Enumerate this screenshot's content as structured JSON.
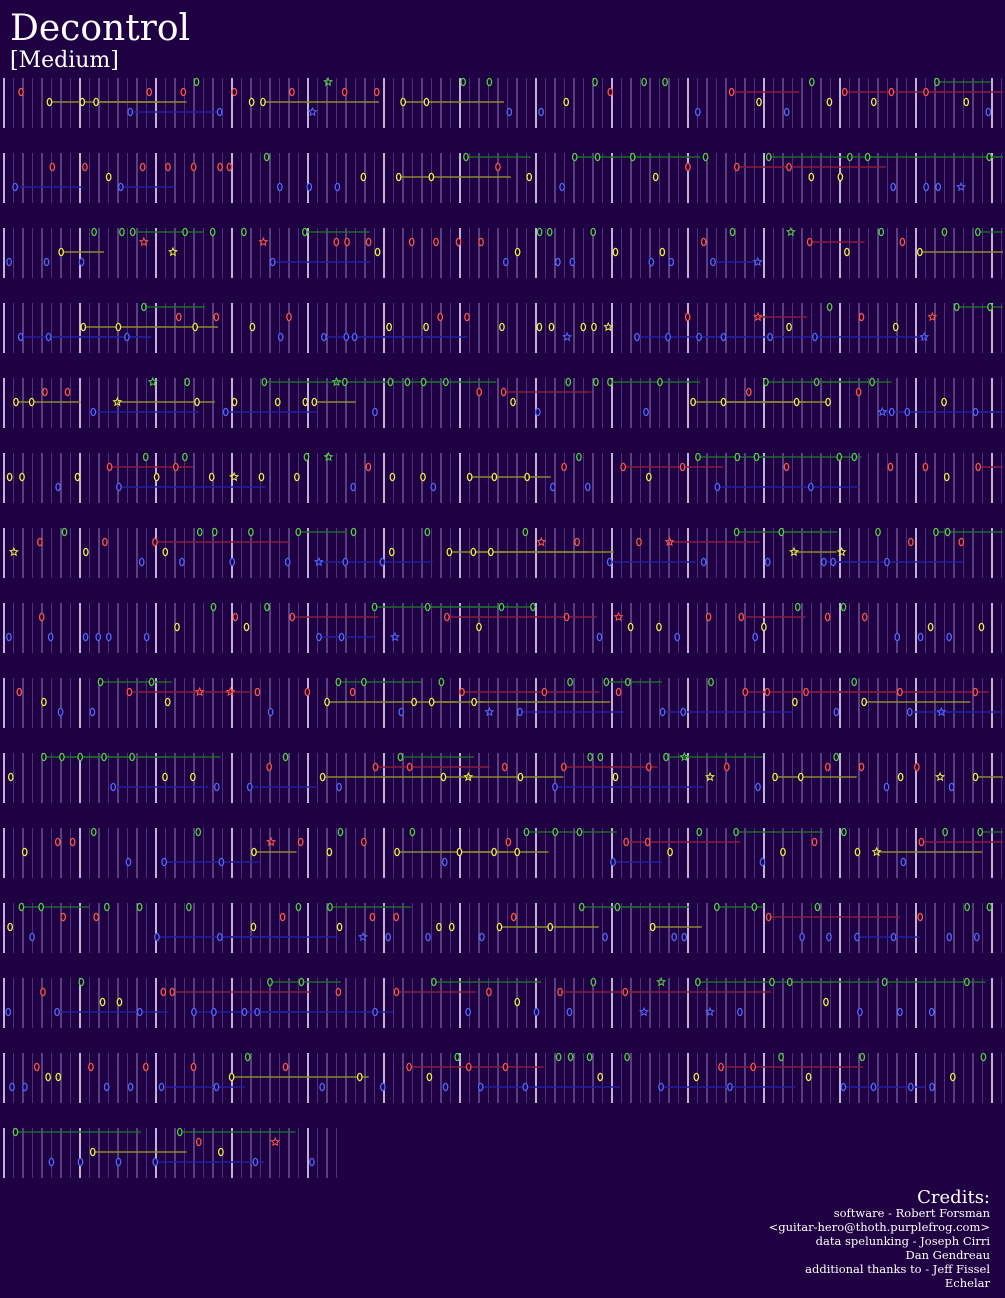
{
  "header": {
    "title": "Decontrol",
    "difficulty": "[Medium]"
  },
  "credits": {
    "heading": "Credits:",
    "lines": [
      "software - Robert Forsman",
      "<guitar-hero@thoth.purplefrog.com>",
      "data spelunking - Joseph Cirri",
      "Dan Gendreau",
      "additional thanks to - Jeff Fissel",
      "Echelar"
    ]
  }
}
